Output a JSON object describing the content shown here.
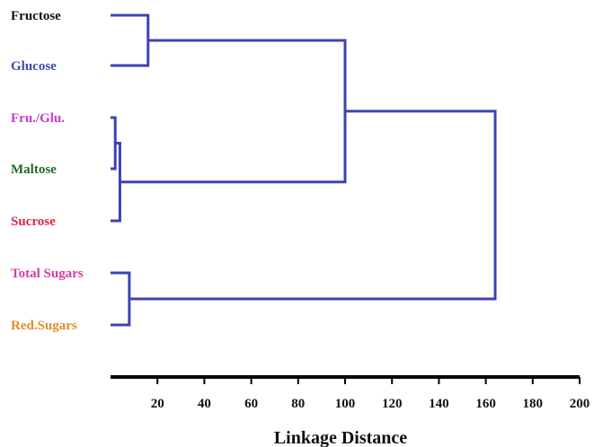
{
  "chart_data": {
    "type": "dendrogram",
    "title": "",
    "xlabel": "Linkage Distance",
    "ylabel": "",
    "xlim": [
      0,
      200
    ],
    "xticks": [
      20,
      40,
      60,
      80,
      100,
      120,
      140,
      160,
      180,
      200
    ],
    "grid": false,
    "legend": "none",
    "link_color": "#3d43b3",
    "axis_color": "#000000",
    "leaves": [
      {
        "label": "Fructose",
        "color": "#111111"
      },
      {
        "label": "Glucose",
        "color": "#3e47b5"
      },
      {
        "label": "Fru./Glu.",
        "color": "#c13fc1"
      },
      {
        "label": "Maltose",
        "color": "#1e6a28"
      },
      {
        "label": "Sucrose",
        "color": "#e0243f"
      },
      {
        "label": "Total Sugars",
        "color": "#d63da6"
      },
      {
        "label": "Red.Sugars",
        "color": "#e08d2a"
      }
    ],
    "merges": [
      {
        "id": "n1",
        "children": [
          "Fru./Glu.",
          "Maltose"
        ],
        "distance": 2
      },
      {
        "id": "n2",
        "children": [
          "n1",
          "Sucrose"
        ],
        "distance": 4
      },
      {
        "id": "n3",
        "children": [
          "Total Sugars",
          "Red.Sugars"
        ],
        "distance": 8
      },
      {
        "id": "n4",
        "children": [
          "Fructose",
          "Glucose"
        ],
        "distance": 16
      },
      {
        "id": "n5",
        "children": [
          "n4",
          "n2"
        ],
        "distance": 100
      },
      {
        "id": "n6",
        "children": [
          "n5",
          "n3"
        ],
        "distance": 164
      }
    ]
  }
}
